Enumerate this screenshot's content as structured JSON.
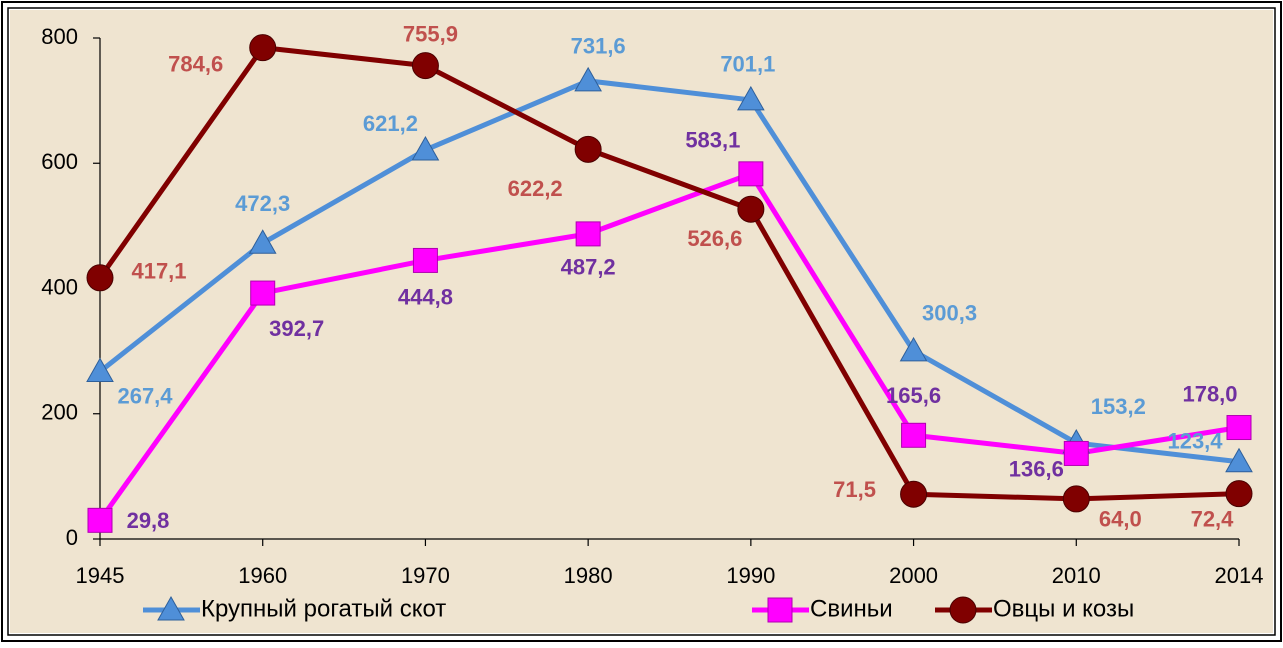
{
  "chart_data": {
    "type": "line",
    "categories": [
      "1945",
      "1960",
      "1970",
      "1980",
      "1990",
      "2000",
      "2010",
      "2014"
    ],
    "series": [
      {
        "name": "Крупный рогатый скот",
        "color": "#4f8fd8",
        "label_color": "#5b9bd5",
        "marker": "triangle",
        "values": [
          267.4,
          472.3,
          621.2,
          731.6,
          701.1,
          300.3,
          153.2,
          123.4
        ],
        "value_labels": [
          "267,4",
          "472,3",
          "621,2",
          "731,6",
          "701,1",
          "300,3",
          "153,2",
          "123,4"
        ]
      },
      {
        "name": "Свиньи",
        "color": "#ff00ff",
        "label_color": "#7030a0",
        "marker": "square",
        "values": [
          29.8,
          392.7,
          444.8,
          487.2,
          583.1,
          165.6,
          136.6,
          178.0
        ],
        "value_labels": [
          "29,8",
          "392,7",
          "444,8",
          "487,2",
          "583,1",
          "165,6",
          "136,6",
          "178,0"
        ]
      },
      {
        "name": "Овцы и козы",
        "color": "#800000",
        "label_color": "#c0504d",
        "marker": "circle",
        "values": [
          417.1,
          784.6,
          755.9,
          622.2,
          526.6,
          71.5,
          64.0,
          72.4
        ],
        "value_labels": [
          "417,1",
          "784,6",
          "755,9",
          "622,2",
          "526,6",
          "71,5",
          "64,0",
          "72,4"
        ]
      }
    ],
    "ylim": [
      0,
      800
    ],
    "yticks": [
      0,
      200,
      400,
      600,
      800
    ],
    "legend": "bottom"
  }
}
